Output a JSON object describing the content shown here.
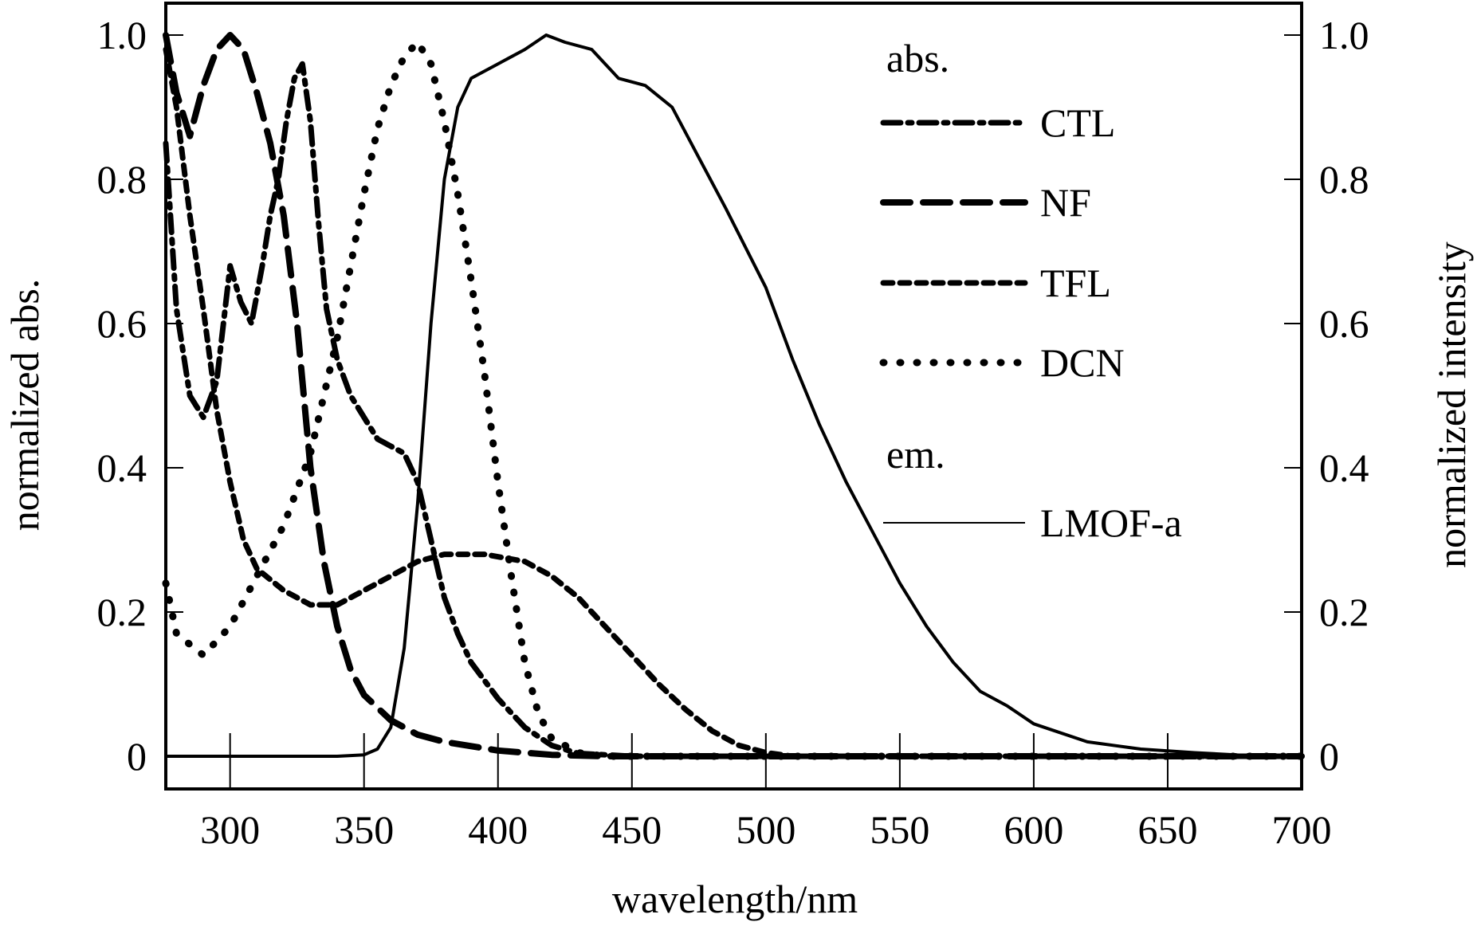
{
  "chart_data": {
    "type": "line",
    "title": "",
    "xlabel": "wavelength/nm",
    "ylabel_left": "normalized abs.",
    "ylabel_right": "normalized intensity",
    "xlim": [
      276,
      700
    ],
    "ylim": [
      0,
      1.0
    ],
    "x_ticks": [
      300,
      350,
      400,
      450,
      500,
      550,
      600,
      650,
      700
    ],
    "y_ticks": [
      0,
      0.2,
      0.4,
      0.6,
      0.8,
      1.0
    ],
    "y_tick_labels": [
      "0",
      "0.2",
      "0.4",
      "0.6",
      "0.8",
      "1.0"
    ],
    "grid": false,
    "legend": {
      "placement": "top-right",
      "groups": [
        {
          "heading": "abs.",
          "entries": [
            "CTL",
            "NF",
            "TFL",
            "DCN"
          ]
        },
        {
          "heading": "em.",
          "entries": [
            "LMOF-a"
          ]
        }
      ]
    },
    "series": [
      {
        "name": "CTL",
        "group": "abs.",
        "style": "dash-dot",
        "x": [
          276,
          280,
          285,
          290,
          295,
          300,
          304,
          308,
          312,
          315,
          318,
          321,
          324,
          327,
          330,
          333,
          336,
          340,
          345,
          350,
          355,
          360,
          365,
          370,
          375,
          380,
          385,
          390,
          400,
          410,
          420,
          430,
          450,
          700
        ],
        "y": [
          0.85,
          0.62,
          0.5,
          0.47,
          0.52,
          0.68,
          0.63,
          0.6,
          0.68,
          0.75,
          0.8,
          0.88,
          0.94,
          0.96,
          0.88,
          0.74,
          0.62,
          0.55,
          0.5,
          0.47,
          0.44,
          0.43,
          0.42,
          0.38,
          0.3,
          0.22,
          0.17,
          0.13,
          0.08,
          0.04,
          0.015,
          0.004,
          0,
          0
        ]
      },
      {
        "name": "NF",
        "group": "abs.",
        "style": "long-dash",
        "x": [
          276,
          280,
          285,
          290,
          295,
          300,
          305,
          310,
          315,
          320,
          325,
          330,
          335,
          340,
          345,
          350,
          360,
          370,
          380,
          400,
          420,
          440,
          700
        ],
        "y": [
          1.0,
          0.92,
          0.86,
          0.93,
          0.98,
          1.0,
          0.98,
          0.92,
          0.85,
          0.75,
          0.6,
          0.4,
          0.27,
          0.18,
          0.12,
          0.085,
          0.05,
          0.03,
          0.02,
          0.008,
          0.002,
          0,
          0
        ]
      },
      {
        "name": "TFL",
        "group": "abs.",
        "style": "short-dash",
        "x": [
          276,
          280,
          285,
          290,
          295,
          300,
          305,
          310,
          320,
          330,
          340,
          350,
          360,
          370,
          380,
          395,
          410,
          420,
          430,
          440,
          450,
          460,
          470,
          480,
          490,
          500,
          510,
          700
        ],
        "y": [
          0.98,
          0.9,
          0.75,
          0.62,
          0.48,
          0.38,
          0.3,
          0.26,
          0.23,
          0.21,
          0.21,
          0.23,
          0.25,
          0.27,
          0.28,
          0.28,
          0.27,
          0.25,
          0.22,
          0.18,
          0.14,
          0.1,
          0.065,
          0.035,
          0.015,
          0.005,
          0,
          0
        ]
      },
      {
        "name": "DCN",
        "group": "abs.",
        "style": "dotted",
        "x": [
          276,
          280,
          290,
          300,
          310,
          320,
          330,
          340,
          345,
          350,
          355,
          360,
          365,
          370,
          375,
          380,
          385,
          390,
          395,
          400,
          405,
          410,
          415,
          420,
          430,
          440,
          700
        ],
        "y": [
          0.24,
          0.17,
          0.14,
          0.18,
          0.25,
          0.32,
          0.42,
          0.58,
          0.68,
          0.78,
          0.87,
          0.93,
          0.97,
          0.99,
          0.96,
          0.88,
          0.78,
          0.66,
          0.53,
          0.38,
          0.25,
          0.13,
          0.06,
          0.025,
          0.005,
          0,
          0
        ]
      },
      {
        "name": "LMOF-a",
        "group": "em.",
        "style": "solid",
        "x": [
          276,
          300,
          320,
          340,
          350,
          355,
          360,
          365,
          370,
          375,
          380,
          385,
          390,
          400,
          410,
          418,
          425,
          435,
          445,
          455,
          465,
          475,
          485,
          500,
          510,
          520,
          530,
          540,
          550,
          560,
          570,
          580,
          590,
          600,
          620,
          640,
          660,
          680,
          700
        ],
        "y": [
          0,
          0,
          0,
          0,
          0.002,
          0.01,
          0.04,
          0.15,
          0.35,
          0.6,
          0.8,
          0.9,
          0.94,
          0.96,
          0.98,
          1.0,
          0.99,
          0.98,
          0.94,
          0.93,
          0.9,
          0.83,
          0.76,
          0.65,
          0.55,
          0.46,
          0.38,
          0.31,
          0.24,
          0.18,
          0.13,
          0.09,
          0.07,
          0.045,
          0.02,
          0.01,
          0.005,
          0.001,
          0
        ]
      }
    ]
  }
}
